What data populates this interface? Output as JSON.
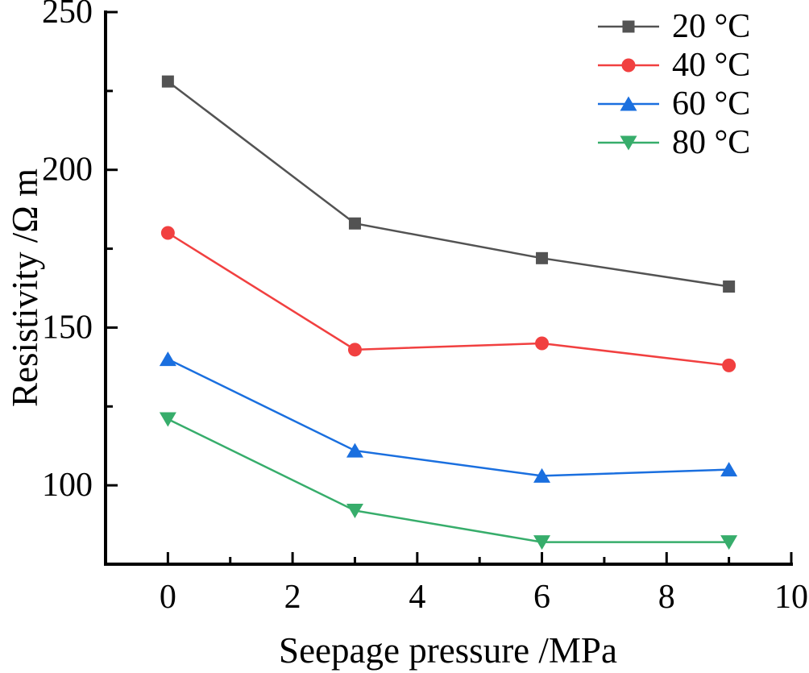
{
  "chart_data": {
    "type": "line",
    "title": "",
    "xlabel": "Seepage pressure /MPa",
    "ylabel": "Resistivity /Ω m",
    "x": [
      0,
      3,
      6,
      9
    ],
    "series": [
      {
        "name": "20 °C",
        "values": [
          228,
          183,
          172,
          163
        ],
        "color": "#535353",
        "marker": "square"
      },
      {
        "name": "40 °C",
        "values": [
          180,
          143,
          145,
          138
        ],
        "color": "#F14040",
        "marker": "circle"
      },
      {
        "name": "60 °C",
        "values": [
          140,
          111,
          103,
          105
        ],
        "color": "#1A6FDF",
        "marker": "triangle-up"
      },
      {
        "name": "80 °C",
        "values": [
          121,
          92,
          82,
          82
        ],
        "color": "#37AD6B",
        "marker": "triangle-down"
      }
    ],
    "xlim": [
      -1,
      10
    ],
    "ylim": [
      75,
      250
    ],
    "x_major_ticks": [
      0,
      2,
      4,
      6,
      8,
      10
    ],
    "x_minor_ticks": [
      1,
      3,
      5,
      7,
      9
    ],
    "y_major_ticks": [
      100,
      150,
      200,
      250
    ],
    "y_minor_ticks": [
      125,
      175,
      225
    ],
    "grid": false,
    "legend_position": "top-right",
    "axis_color": "#000000",
    "background_color": "#ffffff"
  }
}
